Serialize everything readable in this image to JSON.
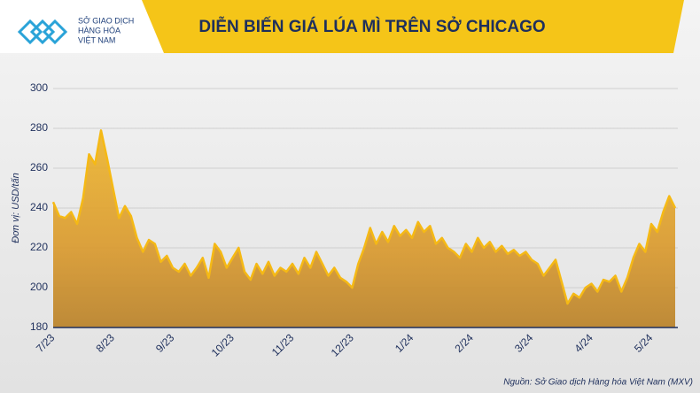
{
  "chart_data": {
    "type": "area-line",
    "title": "DIỄN BIẾN GIÁ LÚA MÌ TRÊN SỞ CHICAGO",
    "logo_text": [
      "SỞ GIAO DỊCH",
      "HÀNG HÓA",
      "VIỆT NAM"
    ],
    "y_label": "Đơn vị: USD/tấn",
    "source": "Nguồn: Sở Giao dịch Hàng hóa Việt Nam (MXV)",
    "color": "#f5b915",
    "ylim": [
      180,
      300
    ],
    "yticks": [
      180,
      200,
      220,
      240,
      260,
      280,
      300
    ],
    "grid": true,
    "categories": [
      "7/23",
      null,
      null,
      null,
      null,
      null,
      null,
      null,
      null,
      null,
      "8/23",
      null,
      null,
      null,
      null,
      null,
      null,
      null,
      null,
      null,
      "9/23",
      null,
      null,
      null,
      null,
      null,
      null,
      null,
      null,
      null,
      "10/23",
      null,
      null,
      null,
      null,
      null,
      null,
      null,
      null,
      null,
      "11/23",
      null,
      null,
      null,
      null,
      null,
      null,
      null,
      null,
      null,
      "12/23",
      null,
      null,
      null,
      null,
      null,
      null,
      null,
      null,
      null,
      "1/24",
      null,
      null,
      null,
      null,
      null,
      null,
      null,
      null,
      null,
      "2/24",
      null,
      null,
      null,
      null,
      null,
      null,
      null,
      null,
      null,
      "3/24",
      null,
      null,
      null,
      null,
      null,
      null,
      null,
      null,
      null,
      "4/24",
      null,
      null,
      null,
      null,
      null,
      null,
      null,
      null,
      null,
      "5/24",
      null,
      null,
      null,
      null
    ],
    "values": [
      243,
      236,
      235,
      238,
      232,
      245,
      267,
      262,
      279,
      265,
      250,
      235,
      241,
      236,
      225,
      218,
      224,
      222,
      213,
      216,
      210,
      208,
      212,
      206,
      210,
      215,
      205,
      222,
      218,
      210,
      215,
      220,
      208,
      204,
      212,
      207,
      213,
      206,
      210,
      208,
      212,
      207,
      215,
      210,
      218,
      212,
      206,
      210,
      205,
      203,
      200,
      212,
      220,
      230,
      222,
      228,
      223,
      231,
      226,
      229,
      225,
      233,
      228,
      231,
      222,
      225,
      220,
      218,
      215,
      222,
      218,
      225,
      220,
      223,
      218,
      221,
      217,
      219,
      216,
      218,
      214,
      212,
      206,
      210,
      214,
      203,
      192,
      197,
      195,
      200,
      202,
      198,
      204,
      203,
      206,
      198,
      205,
      215,
      222,
      218,
      232,
      228,
      238,
      246,
      240
    ]
  }
}
